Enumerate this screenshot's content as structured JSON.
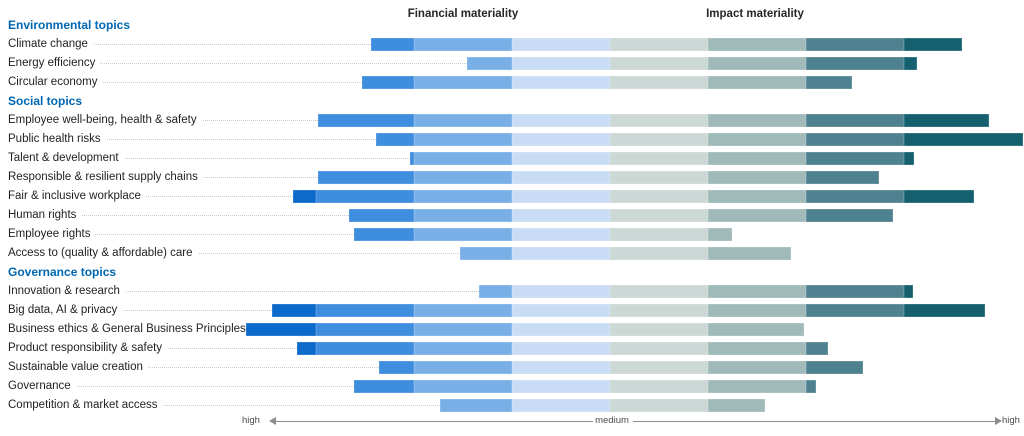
{
  "titles": {
    "financial": "Financial materiality",
    "impact": "Impact materiality"
  },
  "axis": {
    "left": "high",
    "center": "medium",
    "right": "high"
  },
  "palette": {
    "financial_shades": [
      "#c9dcf5",
      "#79afe7",
      "#3e8dde",
      "#0c6acb"
    ],
    "impact_shades": [
      "#ccd8d5",
      "#9fbab9",
      "#4f8290",
      "#14606e"
    ],
    "section_heading_color": "#0067b2",
    "label_color": "#1f1f1f",
    "leader_color": "#c9c9c9",
    "axis_color": "#4a4a4a"
  },
  "chart_data": {
    "type": "bar",
    "subtype": "diverging-segmented-bar",
    "axis_scale": {
      "center_label": "medium",
      "end_label": "high",
      "bands_per_side": 4
    },
    "series": [
      {
        "name": "Financial materiality",
        "direction": "left"
      },
      {
        "name": "Impact materiality",
        "direction": "right"
      }
    ],
    "groups": [
      {
        "label": "Environmental topics",
        "topics": [
          {
            "label": "Climate change",
            "financial": 2.44,
            "impact": 3.59
          },
          {
            "label": "Energy efficiency",
            "financial": 1.46,
            "impact": 3.13
          },
          {
            "label": "Circular economy",
            "financial": 2.53,
            "impact": 2.47
          }
        ]
      },
      {
        "label": "Social topics",
        "topics": [
          {
            "label": "Employee well-being, health & safety",
            "financial": 2.98,
            "impact": 3.87
          },
          {
            "label": "Public health risks",
            "financial": 2.39,
            "impact": 4.21
          },
          {
            "label": "Talent & development",
            "financial": 2.04,
            "impact": 3.1
          },
          {
            "label": "Responsible & resilient supply chains",
            "financial": 2.98,
            "impact": 2.74
          },
          {
            "label": "Fair & inclusive workplace",
            "financial": 3.23,
            "impact": 3.71
          },
          {
            "label": "Human rights",
            "financial": 2.66,
            "impact": 2.89
          },
          {
            "label": "Employee rights",
            "financial": 2.61,
            "impact": 1.24
          },
          {
            "label": "Access to (quality & affordable) care",
            "financial": 1.53,
            "impact": 1.85
          }
        ]
      },
      {
        "label": "Governance topics",
        "topics": [
          {
            "label": "Innovation & research",
            "financial": 1.34,
            "impact": 3.09
          },
          {
            "label": "Big data, AI & privacy",
            "financial": 3.45,
            "impact": 3.83
          },
          {
            "label": "Business ethics & General Business Principles",
            "financial": 3.71,
            "impact": 1.98
          },
          {
            "label": "Product responsibility & safety",
            "financial": 3.19,
            "impact": 2.22
          },
          {
            "label": "Sustainable value creation",
            "financial": 2.36,
            "impact": 2.58
          },
          {
            "label": "Governance",
            "financial": 2.61,
            "impact": 2.1
          },
          {
            "label": "Competition & market access",
            "financial": 1.73,
            "impact": 1.58
          }
        ]
      }
    ]
  }
}
